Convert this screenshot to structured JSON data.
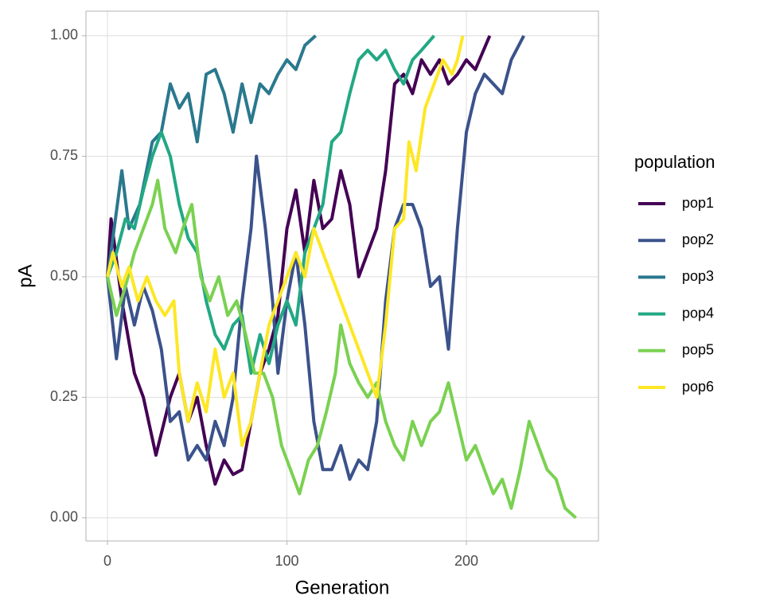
{
  "chart_data": {
    "type": "line",
    "x_label": "Generation",
    "y_label": "pA",
    "legend_title": "population",
    "xlim": [
      -12,
      273.6
    ],
    "ylim": [
      -0.048,
      1.051
    ],
    "xticks": [
      0,
      100,
      200
    ],
    "yticks": [
      {
        "value": 0,
        "label": "0.00"
      },
      {
        "value": 0.25,
        "label": "0.25"
      },
      {
        "value": 0.5,
        "label": "0.50"
      },
      {
        "value": 0.75,
        "label": "0.75"
      },
      {
        "value": 1,
        "label": "1.00"
      }
    ],
    "grid": true,
    "legend_position": "right",
    "series": [
      {
        "name": "pop1",
        "color": "#440154",
        "x": [
          0,
          2,
          8,
          15,
          20,
          27,
          35,
          40,
          45,
          50,
          55,
          60,
          65,
          70,
          75,
          80,
          85,
          90,
          95,
          100,
          105,
          110,
          115,
          120,
          125,
          130,
          135,
          140,
          145,
          150,
          155,
          160,
          165,
          170,
          175,
          180,
          185,
          190,
          195,
          200,
          205,
          213
        ],
        "values": [
          0.5,
          0.62,
          0.45,
          0.3,
          0.25,
          0.13,
          0.25,
          0.3,
          0.2,
          0.25,
          0.15,
          0.07,
          0.12,
          0.09,
          0.1,
          0.2,
          0.3,
          0.35,
          0.42,
          0.6,
          0.68,
          0.55,
          0.7,
          0.6,
          0.62,
          0.72,
          0.65,
          0.5,
          0.55,
          0.6,
          0.72,
          0.9,
          0.92,
          0.88,
          0.95,
          0.92,
          0.95,
          0.9,
          0.92,
          0.95,
          0.93,
          1.0
        ]
      },
      {
        "name": "pop2",
        "color": "#3b528b",
        "x": [
          0,
          5,
          10,
          15,
          20,
          25,
          30,
          35,
          40,
          45,
          50,
          55,
          60,
          65,
          70,
          75,
          80,
          83,
          88,
          92,
          95,
          100,
          105,
          110,
          115,
          120,
          125,
          130,
          135,
          140,
          145,
          150,
          155,
          160,
          165,
          170,
          175,
          180,
          185,
          190,
          195,
          200,
          205,
          210,
          215,
          220,
          225,
          232
        ],
        "values": [
          0.5,
          0.33,
          0.48,
          0.4,
          0.48,
          0.43,
          0.35,
          0.2,
          0.22,
          0.12,
          0.15,
          0.12,
          0.2,
          0.15,
          0.25,
          0.45,
          0.6,
          0.75,
          0.6,
          0.45,
          0.3,
          0.45,
          0.55,
          0.4,
          0.2,
          0.1,
          0.1,
          0.15,
          0.08,
          0.12,
          0.1,
          0.2,
          0.45,
          0.6,
          0.65,
          0.65,
          0.6,
          0.48,
          0.5,
          0.35,
          0.6,
          0.8,
          0.88,
          0.92,
          0.9,
          0.88,
          0.95,
          1.0
        ]
      },
      {
        "name": "pop3",
        "color": "#2a788e",
        "x": [
          0,
          3,
          8,
          12,
          18,
          25,
          30,
          35,
          40,
          45,
          50,
          55,
          60,
          65,
          70,
          75,
          80,
          85,
          90,
          95,
          100,
          105,
          110,
          116
        ],
        "values": [
          0.5,
          0.58,
          0.72,
          0.6,
          0.65,
          0.78,
          0.8,
          0.9,
          0.85,
          0.88,
          0.78,
          0.92,
          0.93,
          0.88,
          0.8,
          0.9,
          0.82,
          0.9,
          0.88,
          0.92,
          0.95,
          0.93,
          0.98,
          1.0
        ]
      },
      {
        "name": "pop4",
        "color": "#22a884",
        "x": [
          0,
          5,
          10,
          15,
          20,
          25,
          30,
          35,
          40,
          45,
          50,
          55,
          60,
          65,
          70,
          75,
          80,
          85,
          90,
          95,
          100,
          105,
          110,
          115,
          120,
          125,
          130,
          135,
          140,
          145,
          150,
          155,
          160,
          165,
          170,
          175,
          182
        ],
        "values": [
          0.5,
          0.55,
          0.62,
          0.6,
          0.68,
          0.75,
          0.8,
          0.75,
          0.65,
          0.58,
          0.55,
          0.45,
          0.38,
          0.35,
          0.4,
          0.42,
          0.3,
          0.38,
          0.32,
          0.4,
          0.45,
          0.4,
          0.55,
          0.6,
          0.65,
          0.78,
          0.8,
          0.88,
          0.95,
          0.97,
          0.95,
          0.97,
          0.93,
          0.9,
          0.95,
          0.97,
          1.0
        ]
      },
      {
        "name": "pop5",
        "color": "#7ad151",
        "x": [
          0,
          5,
          10,
          15,
          20,
          25,
          28,
          32,
          38,
          42,
          47,
          52,
          57,
          62,
          67,
          72,
          77,
          82,
          87,
          92,
          97,
          102,
          107,
          112,
          117,
          122,
          127,
          130,
          135,
          140,
          145,
          150,
          155,
          160,
          165,
          170,
          175,
          180,
          185,
          190,
          195,
          200,
          205,
          210,
          215,
          220,
          225,
          230,
          235,
          240,
          245,
          250,
          255,
          261
        ],
        "values": [
          0.5,
          0.42,
          0.48,
          0.55,
          0.6,
          0.65,
          0.7,
          0.6,
          0.55,
          0.6,
          0.65,
          0.5,
          0.45,
          0.5,
          0.42,
          0.45,
          0.38,
          0.3,
          0.3,
          0.25,
          0.15,
          0.1,
          0.05,
          0.12,
          0.15,
          0.22,
          0.3,
          0.4,
          0.32,
          0.28,
          0.25,
          0.28,
          0.2,
          0.15,
          0.12,
          0.2,
          0.15,
          0.2,
          0.22,
          0.28,
          0.2,
          0.12,
          0.15,
          0.1,
          0.05,
          0.08,
          0.02,
          0.1,
          0.2,
          0.15,
          0.1,
          0.08,
          0.02,
          0.0
        ]
      },
      {
        "name": "pop6",
        "color": "#fde725",
        "x": [
          0,
          3,
          8,
          12,
          17,
          22,
          27,
          32,
          37,
          40,
          45,
          50,
          55,
          60,
          65,
          70,
          75,
          80,
          85,
          90,
          95,
          100,
          105,
          110,
          115,
          120,
          125,
          130,
          135,
          140,
          145,
          150,
          155,
          160,
          165,
          168,
          172,
          177,
          182,
          187,
          192,
          195,
          198
        ],
        "values": [
          0.5,
          0.55,
          0.48,
          0.52,
          0.45,
          0.5,
          0.45,
          0.42,
          0.45,
          0.3,
          0.2,
          0.28,
          0.22,
          0.35,
          0.25,
          0.3,
          0.15,
          0.2,
          0.3,
          0.4,
          0.45,
          0.5,
          0.55,
          0.5,
          0.6,
          0.55,
          0.5,
          0.45,
          0.4,
          0.35,
          0.3,
          0.25,
          0.4,
          0.6,
          0.62,
          0.78,
          0.72,
          0.85,
          0.9,
          0.95,
          0.92,
          0.95,
          1.0
        ]
      }
    ]
  }
}
